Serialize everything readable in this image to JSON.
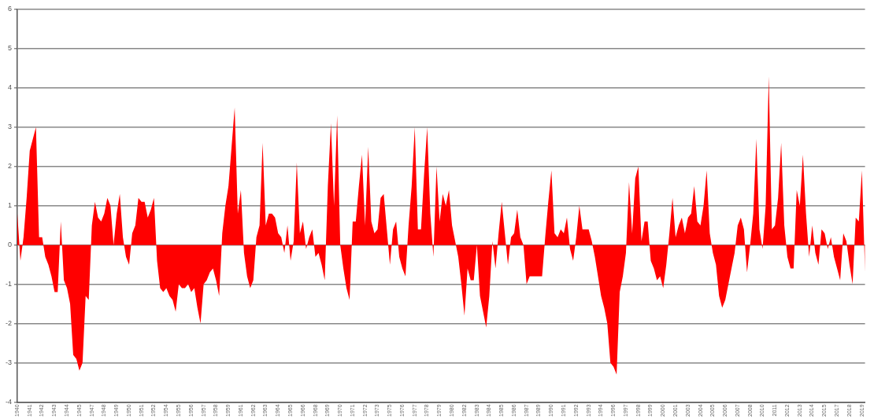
{
  "chart_data": {
    "type": "area",
    "color": "#ff0000",
    "ylim": [
      -4,
      6
    ],
    "yticks": [
      -4,
      -3,
      -2,
      -1,
      0,
      1,
      2,
      3,
      4,
      5,
      6
    ],
    "grid": "y",
    "categories": [
      "1940",
      null,
      null,
      null,
      "1941",
      null,
      null,
      null,
      "1942",
      null,
      null,
      null,
      "1943",
      null,
      null,
      null,
      "1944",
      null,
      null,
      null,
      "1945",
      null,
      null,
      null,
      "1947",
      null,
      null,
      null,
      "1948",
      null,
      null,
      null,
      "1949",
      null,
      null,
      null,
      "1950",
      null,
      null,
      null,
      "1951",
      null,
      null,
      null,
      "1952",
      null,
      null,
      null,
      "1954",
      null,
      null,
      null,
      "1955",
      null,
      null,
      null,
      "1956",
      null,
      null,
      null,
      "1957",
      null,
      null,
      null,
      "1958",
      null,
      null,
      null,
      "1959",
      null,
      null,
      null,
      "1961",
      null,
      null,
      null,
      "1962",
      null,
      null,
      null,
      "1963",
      null,
      null,
      null,
      "1964",
      null,
      null,
      null,
      "1965",
      null,
      null,
      null,
      "1966",
      null,
      null,
      null,
      "1968",
      null,
      null,
      null,
      "1969",
      null,
      null,
      null,
      "1970",
      null,
      null,
      null,
      "1971",
      null,
      null,
      null,
      "1972",
      null,
      null,
      null,
      "1973",
      null,
      null,
      null,
      "1975",
      null,
      null,
      null,
      "1976",
      null,
      null,
      null,
      "1977",
      null,
      null,
      null,
      "1978",
      null,
      null,
      null,
      "1979",
      null,
      null,
      null,
      "1980",
      null,
      null,
      null,
      "1982",
      null,
      null,
      null,
      "1983",
      null,
      null,
      null,
      "1984",
      null,
      null,
      null,
      "1985",
      null,
      null,
      null,
      "1986",
      null,
      null,
      null,
      "1987",
      null,
      null,
      null,
      "1989",
      null,
      null,
      null,
      "1990",
      null,
      null,
      null,
      "1991",
      null,
      null,
      null,
      "1992",
      null,
      null,
      null,
      "1993",
      null,
      null,
      null,
      "1994",
      null,
      null,
      null,
      "1996",
      null,
      null,
      null,
      "1997",
      null,
      null,
      null,
      "1998",
      null,
      null,
      null,
      "1999",
      null,
      null,
      null,
      "2000",
      null,
      null,
      null,
      "2001",
      null,
      null,
      null,
      "2003",
      null,
      null,
      null,
      "2004",
      null,
      null,
      null,
      "2005",
      null,
      null,
      null,
      "2006",
      null,
      null,
      null,
      "2007",
      null,
      null,
      null,
      "2008",
      null,
      null,
      null,
      "2010",
      null,
      null,
      null,
      "2011",
      null,
      null,
      null,
      "2012",
      null,
      null,
      null,
      "2013",
      null,
      null,
      null,
      "2014",
      null,
      null,
      null,
      "2015",
      null,
      null,
      null,
      "2017",
      null,
      null,
      null,
      "2018",
      null,
      null,
      null,
      "2019",
      null
    ],
    "values": [
      0.8,
      -0.4,
      0.2,
      1.2,
      2.4,
      2.7,
      3.0,
      0.2,
      0.2,
      -0.3,
      -0.5,
      -0.8,
      -1.2,
      -1.2,
      0.6,
      -0.9,
      -1.1,
      -1.5,
      -2.8,
      -2.9,
      -3.2,
      -3.0,
      -1.3,
      -1.4,
      0.5,
      1.1,
      0.7,
      0.6,
      0.8,
      1.2,
      1.0,
      0,
      0.8,
      1.3,
      0.2,
      -0.3,
      -0.5,
      0.3,
      0.5,
      1.2,
      1.1,
      1.1,
      0.7,
      0.9,
      1.2,
      -0.4,
      -1.1,
      -1.2,
      -1.1,
      -1.3,
      -1.4,
      -1.7,
      -1.0,
      -1.1,
      -1.1,
      -1.0,
      -1.2,
      -1.1,
      -1.6,
      -2.0,
      -1.0,
      -0.9,
      -0.7,
      -0.6,
      -0.9,
      -1.3,
      0.3,
      1.0,
      1.5,
      2.5,
      3.5,
      0.8,
      1.4,
      -0.2,
      -0.8,
      -1.1,
      -0.9,
      0.2,
      0.5,
      2.6,
      0.5,
      0.8,
      0.8,
      0.7,
      0.3,
      0.2,
      -0.2,
      0.5,
      -0.4,
      0.1,
      2.1,
      0.3,
      0.6,
      -0.1,
      0.2,
      0.4,
      -0.3,
      -0.2,
      -0.5,
      -0.9,
      1.5,
      3.1,
      1.0,
      3.3,
      0.0,
      -0.6,
      -1.1,
      -1.4,
      0.6,
      0.6,
      1.5,
      2.3,
      0.5,
      2.5,
      0.6,
      0.3,
      0.4,
      1.2,
      1.3,
      0.4,
      -0.5,
      0.4,
      0.6,
      -0.3,
      -0.6,
      -0.8,
      0.5,
      1.5,
      3.0,
      0.4,
      0.4,
      1.8,
      3.0,
      0.8,
      -0.3,
      2.0,
      0.6,
      1.3,
      1.0,
      1.4,
      0.5,
      0.1,
      -0.3,
      -1.0,
      -1.8,
      -0.6,
      -0.9,
      -0.9,
      0.0,
      -1.3,
      -1.7,
      -2.1,
      -1.3,
      0.1,
      -0.6,
      0.3,
      1.1,
      0.3,
      -0.5,
      0.2,
      0.3,
      0.9,
      0.2,
      0.0,
      -1.0,
      -0.8,
      -0.8,
      -0.8,
      -0.8,
      -0.8,
      0.2,
      1.1,
      1.9,
      0.3,
      0.2,
      0.4,
      0.3,
      0.7,
      -0.1,
      -0.4,
      0.2,
      1.0,
      0.4,
      0.4,
      0.4,
      0.1,
      -0.3,
      -0.8,
      -1.3,
      -1.6,
      -2.0,
      -3.0,
      -3.1,
      -3.3,
      -1.2,
      -0.8,
      -0.2,
      1.6,
      0.3,
      1.7,
      2.0,
      0.1,
      0.6,
      0.6,
      -0.4,
      -0.6,
      -0.9,
      -0.8,
      -1.1,
      -0.5,
      0.3,
      1.2,
      0.2,
      0.5,
      0.7,
      0.3,
      0.7,
      0.8,
      1.5,
      0.6,
      0.5,
      1.0,
      1.9,
      0.3,
      -0.2,
      -0.5,
      -1.3,
      -1.6,
      -1.4,
      -1.0,
      -0.6,
      -0.2,
      0.5,
      0.7,
      0.4,
      -0.7,
      0.0,
      0.8,
      2.7,
      0.4,
      -0.1,
      1.0,
      4.3,
      0.4,
      0.5,
      1.2,
      2.6,
      0.5,
      -0.3,
      -0.6,
      -0.6,
      1.4,
      1.0,
      2.3,
      0.8,
      -0.3,
      0.5,
      -0.2,
      -0.5,
      0.4,
      0.3,
      -0.1,
      0.2,
      -0.3,
      -0.6,
      -0.9,
      0.3,
      0.1,
      -0.5,
      -1.0,
      0.7,
      0.6,
      1.9,
      -0.7
    ]
  }
}
